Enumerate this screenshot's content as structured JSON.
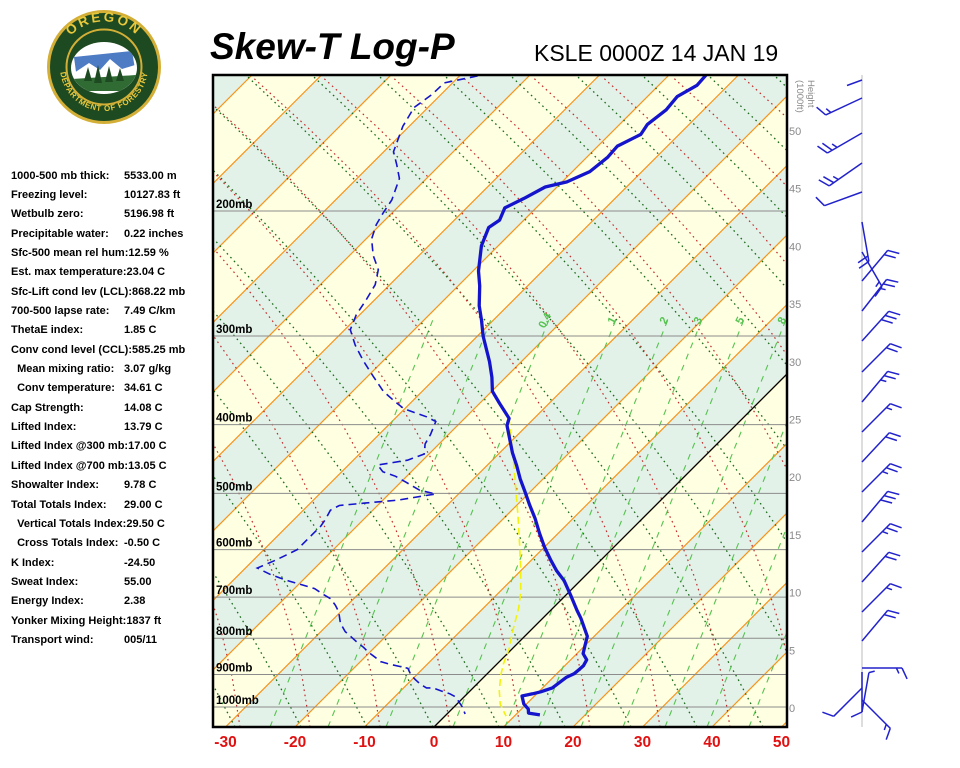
{
  "header": {
    "title": "Skew-T Log-P",
    "station_line": "KSLE 0000Z 14 JAN 19"
  },
  "logo": {
    "top_text": "OREGON",
    "bottom_text": "DEPARTMENT OF FORESTRY"
  },
  "stats": {
    "rows": [
      {
        "label": "1000-500 mb thick:",
        "value": "5533.00 m"
      },
      {
        "label": "Freezing level:",
        "value": "10127.83 ft"
      },
      {
        "label": "Wetbulb zero:",
        "value": "5196.98 ft"
      },
      {
        "label": "Precipitable water:",
        "value": "0.22 inches"
      },
      {
        "label": "Sfc-500 mean rel hum:",
        "value": "12.59 %"
      },
      {
        "label": "Est. max temperature:",
        "value": "23.04 C"
      },
      {
        "label": "Sfc-Lift cond lev (LCL):",
        "value": "868.22 mb"
      },
      {
        "label": "700-500 lapse rate:",
        "value": "7.49 C/km"
      },
      {
        "label": "ThetaE index:",
        "value": "1.85 C"
      },
      {
        "label": "Conv cond level (CCL):",
        "value": "585.25 mb"
      },
      {
        "label": "  Mean mixing ratio:",
        "value": "3.07 g/kg"
      },
      {
        "label": "  Conv temperature:",
        "value": "34.61 C"
      },
      {
        "label": "Cap Strength:",
        "value": "14.08 C"
      },
      {
        "label": "Lifted Index:",
        "value": "13.79 C"
      },
      {
        "label": "Lifted Index @300 mb:",
        "value": "17.00 C"
      },
      {
        "label": "Lifted Index @700 mb:",
        "value": "13.05 C"
      },
      {
        "label": "Showalter Index:",
        "value": "9.78 C"
      },
      {
        "label": "Total Totals Index:",
        "value": "29.00 C"
      },
      {
        "label": "  Vertical Totals Index:",
        "value": "29.50 C"
      },
      {
        "label": "  Cross Totals Index:",
        "value": "-0.50 C"
      },
      {
        "label": "K Index:",
        "value": "-24.50"
      },
      {
        "label": "Sweat Index:",
        "value": "55.00"
      },
      {
        "label": "Energy Index:",
        "value": "2.38"
      },
      {
        "label": "Yonker Mixing Height:",
        "value": "1837 ft"
      },
      {
        "label": "Transport wind:",
        "value": "005/11"
      }
    ]
  },
  "chart_data": {
    "type": "skewt-log-p",
    "x_axis": {
      "unit": "C",
      "label_values": [
        -30,
        -20,
        -10,
        0,
        10,
        20,
        30,
        40,
        50
      ]
    },
    "pressure_levels_mb": [
      200,
      300,
      400,
      500,
      600,
      700,
      800,
      900,
      1000
    ],
    "height_scale": {
      "title_line1": "Height",
      "title_line2": "(1000ft)",
      "ticks": [
        0,
        5,
        10,
        15,
        20,
        25,
        30,
        35,
        40,
        45,
        50
      ]
    },
    "isotherm_interval_c": 10,
    "mixing_ratio_lines_bottom_x": [
      270,
      328,
      386,
      453,
      505,
      539,
      581,
      623,
      665,
      707,
      749,
      791
    ],
    "mixing_ratio_labels": [
      {
        "value": "0.4",
        "bottom_x": 386
      },
      {
        "value": "1",
        "bottom_x": 453
      },
      {
        "value": "2",
        "bottom_x": 505
      },
      {
        "value": "3",
        "bottom_x": 539
      },
      {
        "value": "5",
        "bottom_x": 581
      },
      {
        "value": "8",
        "bottom_x": 623
      }
    ],
    "series": {
      "temperature_mb_c": [
        [
          128,
          -54.7
        ],
        [
          133,
          -54.5
        ],
        [
          138,
          -55.7
        ],
        [
          144,
          -55.4
        ],
        [
          151,
          -56
        ],
        [
          156,
          -55.5
        ],
        [
          162,
          -57.2
        ],
        [
          168,
          -57
        ],
        [
          176,
          -57.5
        ],
        [
          182,
          -59.3
        ],
        [
          185,
          -61.7
        ],
        [
          192,
          -63.1
        ],
        [
          198,
          -64.5
        ],
        [
          206,
          -63.5
        ],
        [
          211,
          -64
        ],
        [
          224,
          -62.4
        ],
        [
          243,
          -59.2
        ],
        [
          255,
          -56.9
        ],
        [
          272,
          -54.1
        ],
        [
          285,
          -51.7
        ],
        [
          300,
          -49.2
        ],
        [
          326,
          -44.6
        ],
        [
          343,
          -42
        ],
        [
          359,
          -39.9
        ],
        [
          373,
          -37.2
        ],
        [
          392,
          -33.6
        ],
        [
          401,
          -32.9
        ],
        [
          438,
          -28.2
        ],
        [
          457,
          -25.7
        ],
        [
          477,
          -23.3
        ],
        [
          497,
          -20.8
        ],
        [
          519,
          -18.2
        ],
        [
          542,
          -15.5
        ],
        [
          569,
          -12.7
        ],
        [
          595,
          -10
        ],
        [
          621,
          -7.2
        ],
        [
          643,
          -4.8
        ],
        [
          664,
          -2.3
        ],
        [
          698,
          0.9
        ],
        [
          731,
          3.8
        ],
        [
          750,
          5.5
        ],
        [
          795,
          9
        ],
        [
          819,
          10
        ],
        [
          841,
          10.9
        ],
        [
          858,
          12.3
        ],
        [
          875,
          12.7
        ],
        [
          886,
          12.6
        ],
        [
          898,
          12.5
        ],
        [
          908,
          11.9
        ],
        [
          940,
          11.4
        ],
        [
          952,
          10.3
        ],
        [
          958,
          9.4
        ],
        [
          965,
          8.2
        ],
        [
          990,
          9.6
        ],
        [
          1007,
          11
        ],
        [
          1020,
          11.6
        ],
        [
          1026,
          13.5
        ]
      ],
      "dewpoint_mb_c": [
        [
          129,
          -87.4
        ],
        [
          132,
          -91.2
        ],
        [
          137,
          -91.3
        ],
        [
          143,
          -92
        ],
        [
          152,
          -90.9
        ],
        [
          165,
          -88.6
        ],
        [
          172,
          -86.3
        ],
        [
          180,
          -83.9
        ],
        [
          193,
          -81.9
        ],
        [
          201,
          -81.3
        ],
        [
          209,
          -80.6
        ],
        [
          219,
          -79.2
        ],
        [
          231,
          -76.6
        ],
        [
          242,
          -73.8
        ],
        [
          254,
          -72.1
        ],
        [
          267,
          -71.2
        ],
        [
          280,
          -70.5
        ],
        [
          294,
          -69.2
        ],
        [
          309,
          -66.3
        ],
        [
          325,
          -62.9
        ],
        [
          342,
          -59.2
        ],
        [
          359,
          -55.6
        ],
        [
          371,
          -52.5
        ],
        [
          380,
          -50.1
        ],
        [
          390,
          -45.7
        ],
        [
          396,
          -43.7
        ],
        [
          413,
          -42.6
        ],
        [
          426,
          -42
        ],
        [
          440,
          -40.7
        ],
        [
          449,
          -42.2
        ],
        [
          456,
          -45.8
        ],
        [
          466,
          -44.1
        ],
        [
          473,
          -41.6
        ],
        [
          482,
          -39.3
        ],
        [
          495,
          -36.1
        ],
        [
          501,
          -33.3
        ],
        [
          504,
          -34.7
        ],
        [
          511,
          -37.8
        ],
        [
          516,
          -42.2
        ],
        [
          520,
          -45.5
        ],
        [
          528,
          -46.1
        ],
        [
          544,
          -45.5
        ],
        [
          556,
          -45.2
        ],
        [
          569,
          -45.2
        ],
        [
          584,
          -45.2
        ],
        [
          600,
          -45.2
        ],
        [
          612,
          -46.1
        ],
        [
          622,
          -46.9
        ],
        [
          637,
          -48.3
        ],
        [
          650,
          -45.6
        ],
        [
          662,
          -42.6
        ],
        [
          673,
          -39.4
        ],
        [
          681,
          -37.1
        ],
        [
          694,
          -35
        ],
        [
          704,
          -33.3
        ],
        [
          719,
          -31.7
        ],
        [
          734,
          -30.3
        ],
        [
          762,
          -28.4
        ],
        [
          783,
          -26.5
        ],
        [
          799,
          -24.6
        ],
        [
          811,
          -23.2
        ],
        [
          824,
          -21.6
        ],
        [
          838,
          -20.1
        ],
        [
          851,
          -18.5
        ],
        [
          863,
          -17.1
        ],
        [
          870,
          -15.5
        ],
        [
          877,
          -13.6
        ],
        [
          882,
          -12.2
        ],
        [
          900,
          -10.9
        ],
        [
          914,
          -9.6
        ],
        [
          930,
          -8
        ],
        [
          940,
          -6.7
        ],
        [
          940,
          -5.8
        ],
        [
          949,
          -4.2
        ],
        [
          958,
          -2.5
        ],
        [
          968,
          -1.2
        ],
        [
          980,
          -0.3
        ],
        [
          1000,
          1.2
        ],
        [
          1023,
          2.6
        ]
      ],
      "wetbulb_mb_c": [
        [
          128,
          -54.7
        ],
        [
          133,
          -54.5
        ],
        [
          138,
          -55.7
        ],
        [
          144,
          -55.4
        ],
        [
          151,
          -56
        ],
        [
          156,
          -55.5
        ],
        [
          162,
          -57.2
        ],
        [
          168,
          -57
        ],
        [
          176,
          -57.5
        ],
        [
          182,
          -59.3
        ],
        [
          185,
          -61.7
        ],
        [
          192,
          -63.1
        ],
        [
          198,
          -64.5
        ],
        [
          206,
          -63.5
        ],
        [
          211,
          -64
        ],
        [
          224,
          -62.4
        ],
        [
          243,
          -59.2
        ],
        [
          255,
          -56.9
        ],
        [
          272,
          -54.1
        ],
        [
          285,
          -51.7
        ],
        [
          300,
          -49.2
        ],
        [
          326,
          -44.6
        ],
        [
          343,
          -42
        ],
        [
          359,
          -39.9
        ],
        [
          373,
          -37.2
        ],
        [
          392,
          -33.6
        ],
        [
          422,
          -30
        ],
        [
          459,
          -25.9
        ],
        [
          498,
          -22
        ],
        [
          540,
          -18.1
        ],
        [
          587,
          -14.2
        ],
        [
          637,
          -10.4
        ],
        [
          691,
          -6.8
        ],
        [
          726,
          -4.9
        ],
        [
          781,
          -2.5
        ],
        [
          829,
          -0.4
        ],
        [
          869,
          0.9
        ],
        [
          903,
          2.2
        ],
        [
          949,
          4.2
        ],
        [
          990,
          6.2
        ],
        [
          1013,
          7.7
        ],
        [
          1030,
          8.8
        ]
      ]
    },
    "wind_barbs": [
      {
        "y": 80,
        "dir": 250,
        "spd": 3
      },
      {
        "y": 98,
        "dir": 245,
        "spd": 15
      },
      {
        "y": 133,
        "dir": 240,
        "spd": 25
      },
      {
        "y": 163,
        "dir": 235,
        "spd": 25
      },
      {
        "y": 192,
        "dir": 250,
        "spd": 10
      },
      {
        "y": 222,
        "dir": 170,
        "spd": 20
      },
      {
        "y": 252,
        "dir": 150,
        "spd": 15
      },
      {
        "y": 281,
        "dir": 40,
        "spd": 20
      },
      {
        "y": 311,
        "dir": 38,
        "spd": 25
      },
      {
        "y": 341,
        "dir": 42,
        "spd": 30
      },
      {
        "y": 372,
        "dir": 45,
        "spd": 20
      },
      {
        "y": 402,
        "dir": 40,
        "spd": 25
      },
      {
        "y": 432,
        "dir": 45,
        "spd": 15
      },
      {
        "y": 462,
        "dir": 43,
        "spd": 20
      },
      {
        "y": 492,
        "dir": 45,
        "spd": 25
      },
      {
        "y": 522,
        "dir": 40,
        "spd": 30
      },
      {
        "y": 552,
        "dir": 45,
        "spd": 25
      },
      {
        "y": 582,
        "dir": 42,
        "spd": 20
      },
      {
        "y": 612,
        "dir": 45,
        "spd": 15
      },
      {
        "y": 641,
        "dir": 40,
        "spd": 20
      },
      {
        "y": 668,
        "dir": 90,
        "spd": 15
      },
      {
        "y": 672,
        "dir": 180,
        "spd": 10
      },
      {
        "y": 688,
        "dir": 225,
        "spd": 10
      },
      {
        "y": 700,
        "dir": 135,
        "spd": 18
      },
      {
        "y": 712,
        "dir": 10,
        "spd": 8
      }
    ]
  },
  "colors": {
    "band_yellow": "#FFFFE2",
    "band_green": "#E3F2E8",
    "isotherm": "#F7941E",
    "dry_adiabat": "#1B6B1B",
    "moist_adiabat": "#C32B2B",
    "mixing_ratio": "#55C34F",
    "pressure_line": "#8C8C8C",
    "height_label": "#8a8a8a",
    "axis_label": "#E11111",
    "profile_blue": "#1414CC",
    "wetbulb_yellow": "#F2F20A",
    "barb_blue": "#2222CC",
    "zero_line": "#000000"
  }
}
